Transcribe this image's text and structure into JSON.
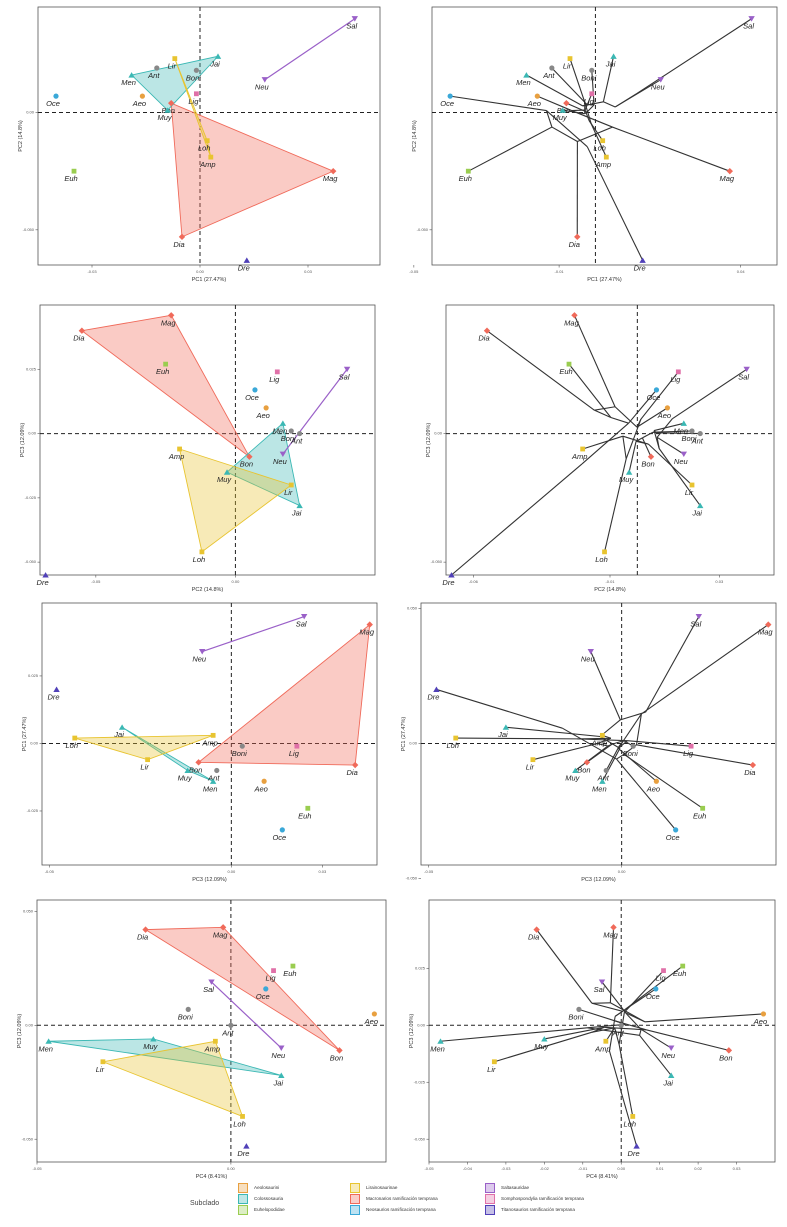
{
  "legend": {
    "title": "Subclado",
    "items": [
      {
        "label": "Aeolosaurini",
        "color": "#e8a040",
        "marker": "circle"
      },
      {
        "label": "Colossosauria",
        "color": "#3bb8b4",
        "marker": "triangle"
      },
      {
        "label": "Euhelopodidae",
        "color": "#9acd50",
        "marker": "square"
      },
      {
        "label": "Lirainosaurinae",
        "color": "#e8c430",
        "marker": "square"
      },
      {
        "label": "Macronarios ramificación temprana",
        "color": "#f06a5a",
        "marker": "diamond"
      },
      {
        "label": "Neosaurios ramificación temprana",
        "color": "#3aa8d8",
        "marker": "circle"
      },
      {
        "label": "Saltasauridae",
        "color": "#9a60c8",
        "marker": "tri-down"
      },
      {
        "label": "Somphospondylia ramificación temprana",
        "color": "#e070a8",
        "marker": "square"
      },
      {
        "label": "Titanosaurios ramificación temprana",
        "color": "#5040b8",
        "marker": "triangle"
      }
    ]
  },
  "groups": {
    "Aeolosaurini": [
      "Aeo"
    ],
    "Colossosauria": [
      "Men",
      "Jai",
      "Muy"
    ],
    "Euhelopodidae": [
      "Euh"
    ],
    "Lirainosaurinae": [
      "Lir",
      "Amp",
      "Loh"
    ],
    "Macronarios": [
      "Dia",
      "Mag",
      "Bon"
    ],
    "Neosaurios": [
      "Oce"
    ],
    "Saltasauridae": [
      "Sal",
      "Neu"
    ],
    "Somphospondylia": [
      "Lig"
    ],
    "Titanosaurios": [
      "Dre"
    ]
  },
  "chart_data": [
    {
      "type": "scatter",
      "panel": "pca-hull",
      "xlabel": "PC1 (27.47%)",
      "ylabel": "PC2 (14.8%)",
      "xlim": [
        -0.045,
        0.05
      ],
      "ylim": [
        -0.065,
        0.045
      ],
      "xticks": [
        -0.03,
        0.0,
        0.03
      ],
      "yticks": [
        -0.05,
        0.0
      ],
      "points": {
        "Sal": [
          0.043,
          0.04
        ],
        "Neu": [
          0.018,
          0.014
        ],
        "Jai": [
          0.005,
          0.024
        ],
        "Lir": [
          -0.007,
          0.023
        ],
        "Boni": [
          -0.001,
          0.018
        ],
        "Lig": [
          -0.001,
          0.008
        ],
        "Ant": [
          -0.012,
          0.019
        ],
        "Men": [
          -0.019,
          0.016
        ],
        "Aeo": [
          -0.016,
          0.007
        ],
        "Bon": [
          -0.008,
          0.004
        ],
        "Muy": [
          -0.009,
          0.001
        ],
        "Oce": [
          -0.04,
          0.007
        ],
        "Loh": [
          0.002,
          -0.012
        ],
        "Amp": [
          0.003,
          -0.019
        ],
        "Euh": [
          -0.035,
          -0.025
        ],
        "Mag": [
          0.037,
          -0.025
        ],
        "Dia": [
          -0.005,
          -0.053
        ],
        "Dre": [
          0.013,
          -0.063
        ]
      }
    },
    {
      "type": "scatter",
      "panel": "phylomorphospace",
      "xlabel": "PC1 (27.47%)",
      "ylabel": "PC2 (14.8%)",
      "xlim": [
        -0.045,
        0.05
      ],
      "ylim": [
        -0.065,
        0.045
      ],
      "xticks": [
        -0.05,
        -0.01,
        0.04
      ],
      "yticks": [
        -0.05,
        0.05
      ]
    },
    {
      "type": "scatter",
      "panel": "pca-hull",
      "xlabel": "PC2 (14.8%)",
      "ylabel": "PC3 (12.09%)",
      "xlim": [
        -0.07,
        0.05
      ],
      "ylim": [
        -0.055,
        0.05
      ],
      "xticks": [
        -0.05,
        0.0
      ],
      "yticks": [
        -0.05,
        -0.025,
        0.0,
        0.025
      ],
      "points": {
        "Mag": [
          -0.023,
          0.046
        ],
        "Dia": [
          -0.055,
          0.04
        ],
        "Euh": [
          -0.025,
          0.027
        ],
        "Lig": [
          0.015,
          0.024
        ],
        "Sal": [
          0.04,
          0.025
        ],
        "Oce": [
          0.007,
          0.017
        ],
        "Aeo": [
          0.011,
          0.01
        ],
        "Men": [
          0.017,
          0.004
        ],
        "Boni": [
          0.02,
          0.001
        ],
        "Ant": [
          0.023,
          0.0
        ],
        "Neu": [
          0.017,
          -0.008
        ],
        "Bon": [
          0.005,
          -0.009
        ],
        "Muy": [
          -0.003,
          -0.015
        ],
        "Amp": [
          -0.02,
          -0.006
        ],
        "Lir": [
          0.02,
          -0.02
        ],
        "Jai": [
          0.023,
          -0.028
        ],
        "Loh": [
          -0.012,
          -0.046
        ],
        "Dre": [
          -0.068,
          -0.055
        ]
      }
    },
    {
      "type": "scatter",
      "panel": "phylomorphospace",
      "xlabel": "PC2 (14.8%)",
      "ylabel": "PC3 (12.09%)",
      "xlim": [
        -0.07,
        0.05
      ],
      "ylim": [
        -0.055,
        0.05
      ],
      "xticks": [
        -0.06,
        -0.01,
        0.03
      ],
      "yticks": [
        -0.05,
        0.0
      ]
    },
    {
      "type": "scatter",
      "panel": "pca-hull",
      "xlabel": "PC3 (12.09%)",
      "ylabel": "PC1 (27.47%)",
      "xlim": [
        -0.052,
        0.04
      ],
      "ylim": [
        -0.045,
        0.052
      ],
      "xticks": [
        -0.05,
        0.0,
        0.025
      ],
      "yticks": [
        -0.025,
        0.0,
        0.025
      ],
      "points": {
        "Sal": [
          0.02,
          0.047
        ],
        "Mag": [
          0.038,
          0.044
        ],
        "Neu": [
          -0.008,
          0.034
        ],
        "Dre": [
          -0.048,
          0.02
        ],
        "Loh": [
          -0.043,
          0.002
        ],
        "Jai": [
          -0.03,
          0.006
        ],
        "Amp": [
          -0.005,
          0.003
        ],
        "Boni": [
          0.003,
          -0.001
        ],
        "Lig": [
          0.018,
          -0.001
        ],
        "Dia": [
          0.034,
          -0.008
        ],
        "Lir": [
          -0.023,
          -0.006
        ],
        "Bon": [
          -0.009,
          -0.007
        ],
        "Muy": [
          -0.012,
          -0.01
        ],
        "Ant": [
          -0.004,
          -0.01
        ],
        "Men": [
          -0.005,
          -0.014
        ],
        "Aeo": [
          0.009,
          -0.014
        ],
        "Euh": [
          0.021,
          -0.024
        ],
        "Oce": [
          0.014,
          -0.032
        ]
      }
    },
    {
      "type": "scatter",
      "panel": "phylomorphospace",
      "xlabel": "PC3 (12.09%)",
      "ylabel": "PC1 (27.47%)",
      "xlim": [
        -0.052,
        0.04
      ],
      "ylim": [
        -0.045,
        0.052
      ],
      "xticks": [
        -0.05,
        0.0
      ],
      "yticks": [
        -0.05,
        0.0,
        0.05
      ]
    },
    {
      "type": "scatter",
      "panel": "pca-hull",
      "xlabel": "PC4 (8.41%)",
      "ylabel": "PC3 (12.09%)",
      "xlim": [
        -0.05,
        0.04
      ],
      "ylim": [
        -0.06,
        0.055
      ],
      "xticks": [
        -0.05,
        0.0
      ],
      "yticks": [
        -0.05,
        0.0,
        0.05
      ],
      "points": {
        "Dia": [
          -0.022,
          0.042
        ],
        "Mag": [
          -0.002,
          0.043
        ],
        "Euh": [
          0.016,
          0.026
        ],
        "Lig": [
          0.011,
          0.024
        ],
        "Sal": [
          -0.005,
          0.019
        ],
        "Oce": [
          0.009,
          0.016
        ],
        "Aeo": [
          0.037,
          0.005
        ],
        "Boni": [
          -0.011,
          0.007
        ],
        "Ant": [
          0.0,
          0.0
        ],
        "Men": [
          -0.047,
          -0.007
        ],
        "Muy": [
          -0.02,
          -0.006
        ],
        "Amp": [
          -0.004,
          -0.007
        ],
        "Neu": [
          0.013,
          -0.01
        ],
        "Bon": [
          0.028,
          -0.011
        ],
        "Lir": [
          -0.033,
          -0.016
        ],
        "Jai": [
          0.013,
          -0.022
        ],
        "Loh": [
          0.003,
          -0.04
        ],
        "Dre": [
          0.004,
          -0.053
        ]
      }
    },
    {
      "type": "scatter",
      "panel": "phylomorphospace",
      "xlabel": "PC4 (8.41%)",
      "ylabel": "PC3 (12.09%)",
      "xlim": [
        -0.05,
        0.04
      ],
      "ylim": [
        -0.06,
        0.055
      ],
      "xticks": [
        -0.05,
        -0.04,
        -0.03,
        -0.02,
        -0.01,
        0.0,
        0.01,
        0.02,
        0.03
      ],
      "yticks": [
        -0.05,
        -0.025,
        0.0,
        0.025
      ]
    }
  ]
}
